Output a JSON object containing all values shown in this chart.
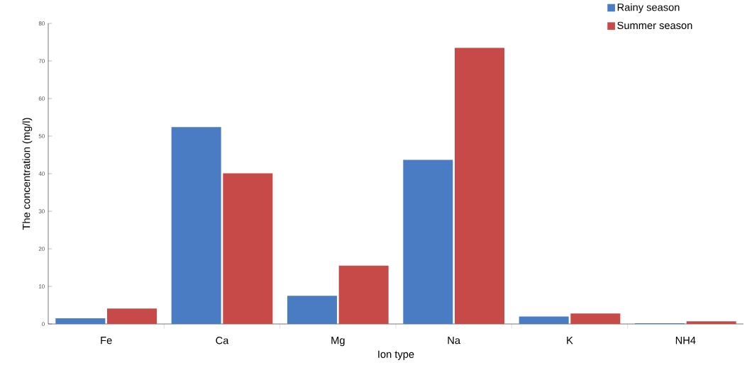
{
  "chart_data": {
    "type": "bar",
    "xlabel": "Ion type",
    "ylabel": "The concentration (mg/l)",
    "categories": [
      "Fe",
      "Ca",
      "Mg",
      "Na",
      "K",
      "NH4"
    ],
    "series": [
      {
        "name": "Rainy season",
        "color": "#4a7cc3",
        "values": [
          1.5,
          52.4,
          7.5,
          43.7,
          2.0,
          0.2
        ]
      },
      {
        "name": "Summer season",
        "color": "#c84a48",
        "values": [
          4.1,
          40.1,
          15.5,
          73.5,
          2.8,
          0.7
        ]
      }
    ],
    "ylim": [
      0,
      80
    ],
    "yticks": [
      0,
      10,
      20,
      30,
      40,
      50,
      60,
      70,
      80
    ],
    "grid": false,
    "legend": "top right"
  }
}
